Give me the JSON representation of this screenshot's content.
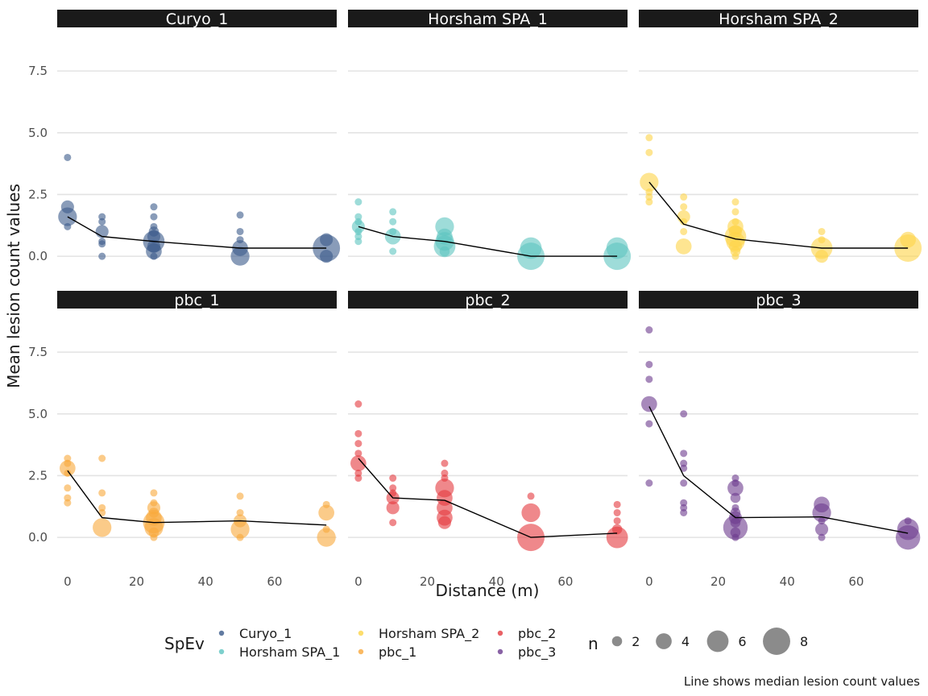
{
  "chart_data": {
    "type": "scatter",
    "layout": "faceted 2x3 scatter with median line",
    "xlabel": "Distance (m)",
    "ylabel": "Mean lesion count values",
    "caption": "Line shows median lesion count values",
    "x_ticks": [
      0,
      20,
      40,
      60
    ],
    "y_ticks": [
      0.0,
      2.5,
      5.0,
      7.5
    ],
    "y_tick_labels": [
      "0.0",
      "2.5",
      "5.0",
      "7.5"
    ],
    "xlim": [
      -3,
      78
    ],
    "ylim": [
      -1.3,
      9.2
    ],
    "grid": "horizontal major gridlines",
    "legend_position": "bottom",
    "legend": {
      "color_title": "SpEv",
      "size_title": "n",
      "colors": [
        {
          "name": "Curyo_1",
          "color": "#3B5A8A"
        },
        {
          "name": "Horsham SPA_1",
          "color": "#5EC4C0"
        },
        {
          "name": "Horsham SPA_2",
          "color": "#FDD447"
        },
        {
          "name": "pbc_1",
          "color": "#F9A83B"
        },
        {
          "name": "pbc_2",
          "color": "#E4393E"
        },
        {
          "name": "pbc_3",
          "color": "#6C3B8E"
        }
      ],
      "sizes": [
        {
          "label": "2",
          "n": 2
        },
        {
          "label": "4",
          "n": 4
        },
        {
          "label": "6",
          "n": 6
        },
        {
          "label": "8",
          "n": 8
        }
      ]
    },
    "panels": [
      {
        "title": "Curyo_1",
        "color": "#3B5A8A",
        "points": [
          [
            0,
            4.0,
            1
          ],
          [
            0,
            2.0,
            3
          ],
          [
            0,
            1.6,
            5
          ],
          [
            0,
            1.2,
            1
          ],
          [
            10,
            1.6,
            1
          ],
          [
            10,
            1.4,
            1
          ],
          [
            10,
            1.0,
            3
          ],
          [
            10,
            0.6,
            1
          ],
          [
            10,
            0.5,
            1
          ],
          [
            10,
            0.0,
            1
          ],
          [
            25,
            2.0,
            1
          ],
          [
            25,
            1.6,
            1
          ],
          [
            25,
            1.2,
            1
          ],
          [
            25,
            1.0,
            2
          ],
          [
            25,
            0.8,
            3
          ],
          [
            25,
            0.6,
            6
          ],
          [
            25,
            0.4,
            3
          ],
          [
            25,
            0.2,
            4
          ],
          [
            25,
            0.0,
            1
          ],
          [
            50,
            1.67,
            1
          ],
          [
            50,
            1.0,
            1
          ],
          [
            50,
            0.67,
            1
          ],
          [
            50,
            0.33,
            4
          ],
          [
            50,
            0.0,
            5
          ],
          [
            75,
            0.67,
            3
          ],
          [
            75,
            0.33,
            8
          ],
          [
            75,
            0.0,
            3
          ]
        ],
        "median": [
          [
            0,
            1.6
          ],
          [
            10,
            0.8
          ],
          [
            25,
            0.6
          ],
          [
            50,
            0.33
          ],
          [
            75,
            0.33
          ]
        ]
      },
      {
        "title": "Horsham SPA_1",
        "color": "#5EC4C0",
        "points": [
          [
            0,
            2.2,
            1
          ],
          [
            0,
            1.6,
            1
          ],
          [
            0,
            1.4,
            1
          ],
          [
            0,
            1.2,
            3
          ],
          [
            0,
            1.0,
            1
          ],
          [
            0,
            0.8,
            1
          ],
          [
            0,
            0.6,
            1
          ],
          [
            10,
            1.8,
            1
          ],
          [
            10,
            1.4,
            1
          ],
          [
            10,
            1.0,
            1
          ],
          [
            10,
            0.8,
            4
          ],
          [
            10,
            0.2,
            1
          ],
          [
            25,
            1.2,
            5
          ],
          [
            25,
            0.8,
            4
          ],
          [
            25,
            0.6,
            5
          ],
          [
            25,
            0.4,
            6
          ],
          [
            25,
            0.2,
            2
          ],
          [
            50,
            0.33,
            6
          ],
          [
            50,
            0.0,
            8
          ],
          [
            75,
            0.33,
            6
          ],
          [
            75,
            0.0,
            8
          ]
        ],
        "median": [
          [
            0,
            1.2
          ],
          [
            10,
            0.8
          ],
          [
            25,
            0.6
          ],
          [
            50,
            0.0
          ],
          [
            75,
            0.0
          ]
        ]
      },
      {
        "title": "Horsham SPA_2",
        "color": "#FDD447",
        "points": [
          [
            0,
            4.8,
            1
          ],
          [
            0,
            4.2,
            1
          ],
          [
            0,
            3.0,
            5
          ],
          [
            0,
            2.6,
            1
          ],
          [
            0,
            2.4,
            1
          ],
          [
            0,
            2.2,
            1
          ],
          [
            10,
            2.4,
            1
          ],
          [
            10,
            2.0,
            1
          ],
          [
            10,
            1.6,
            3
          ],
          [
            10,
            1.4,
            1
          ],
          [
            10,
            1.0,
            1
          ],
          [
            10,
            0.4,
            4
          ],
          [
            25,
            2.2,
            1
          ],
          [
            25,
            1.8,
            1
          ],
          [
            25,
            1.4,
            1
          ],
          [
            25,
            1.2,
            4
          ],
          [
            25,
            1.0,
            3
          ],
          [
            25,
            0.8,
            6
          ],
          [
            25,
            0.6,
            5
          ],
          [
            25,
            0.4,
            3
          ],
          [
            25,
            0.2,
            2
          ],
          [
            25,
            0.0,
            1
          ],
          [
            50,
            1.0,
            1
          ],
          [
            50,
            0.67,
            1
          ],
          [
            50,
            0.33,
            6
          ],
          [
            50,
            0.0,
            3
          ],
          [
            75,
            0.67,
            4
          ],
          [
            75,
            0.33,
            8
          ]
        ],
        "median": [
          [
            0,
            3.0
          ],
          [
            10,
            1.3
          ],
          [
            25,
            0.7
          ],
          [
            50,
            0.33
          ],
          [
            75,
            0.33
          ]
        ]
      },
      {
        "title": "pbc_1",
        "color": "#F9A83B",
        "points": [
          [
            0,
            3.2,
            1
          ],
          [
            0,
            3.0,
            1
          ],
          [
            0,
            2.8,
            4
          ],
          [
            0,
            2.6,
            1
          ],
          [
            0,
            2.0,
            1
          ],
          [
            0,
            1.6,
            1
          ],
          [
            0,
            1.4,
            1
          ],
          [
            10,
            3.2,
            1
          ],
          [
            10,
            1.8,
            1
          ],
          [
            10,
            1.2,
            1
          ],
          [
            10,
            1.0,
            1
          ],
          [
            10,
            0.4,
            5
          ],
          [
            25,
            1.8,
            1
          ],
          [
            25,
            1.4,
            1
          ],
          [
            25,
            1.2,
            3
          ],
          [
            25,
            1.0,
            2
          ],
          [
            25,
            0.8,
            4
          ],
          [
            25,
            0.6,
            6
          ],
          [
            25,
            0.4,
            5
          ],
          [
            25,
            0.2,
            2
          ],
          [
            25,
            0.0,
            1
          ],
          [
            50,
            1.67,
            1
          ],
          [
            50,
            1.0,
            1
          ],
          [
            50,
            0.67,
            3
          ],
          [
            50,
            0.33,
            5
          ],
          [
            50,
            0.0,
            1
          ],
          [
            75,
            1.33,
            1
          ],
          [
            75,
            1.0,
            4
          ],
          [
            75,
            0.33,
            1
          ],
          [
            75,
            0.0,
            5
          ]
        ],
        "median": [
          [
            0,
            2.7
          ],
          [
            10,
            0.8
          ],
          [
            25,
            0.6
          ],
          [
            50,
            0.67
          ],
          [
            75,
            0.5
          ]
        ]
      },
      {
        "title": "pbc_2",
        "color": "#E4393E",
        "points": [
          [
            0,
            5.4,
            1
          ],
          [
            0,
            4.2,
            1
          ],
          [
            0,
            3.8,
            1
          ],
          [
            0,
            3.4,
            1
          ],
          [
            0,
            3.0,
            4
          ],
          [
            0,
            2.6,
            1
          ],
          [
            0,
            2.4,
            1
          ],
          [
            10,
            2.4,
            1
          ],
          [
            10,
            2.0,
            1
          ],
          [
            10,
            1.8,
            1
          ],
          [
            10,
            1.6,
            3
          ],
          [
            10,
            1.2,
            3
          ],
          [
            10,
            0.6,
            1
          ],
          [
            25,
            3.0,
            1
          ],
          [
            25,
            2.6,
            1
          ],
          [
            25,
            2.4,
            1
          ],
          [
            25,
            2.0,
            5
          ],
          [
            25,
            1.6,
            4
          ],
          [
            25,
            1.2,
            4
          ],
          [
            25,
            0.8,
            4
          ],
          [
            25,
            0.6,
            3
          ],
          [
            50,
            1.67,
            1
          ],
          [
            50,
            1.0,
            5
          ],
          [
            50,
            0.0,
            8
          ],
          [
            75,
            1.33,
            1
          ],
          [
            75,
            1.0,
            1
          ],
          [
            75,
            0.67,
            1
          ],
          [
            75,
            0.33,
            2
          ],
          [
            75,
            0.0,
            6
          ]
        ],
        "median": [
          [
            0,
            3.2
          ],
          [
            10,
            1.6
          ],
          [
            25,
            1.5
          ],
          [
            50,
            0.0
          ],
          [
            75,
            0.17
          ]
        ]
      },
      {
        "title": "pbc_3",
        "color": "#6C3B8E",
        "points": [
          [
            0,
            8.4,
            1
          ],
          [
            0,
            7.0,
            1
          ],
          [
            0,
            6.4,
            1
          ],
          [
            0,
            5.4,
            4
          ],
          [
            0,
            4.6,
            1
          ],
          [
            0,
            2.2,
            1
          ],
          [
            10,
            5.0,
            1
          ],
          [
            10,
            3.4,
            1
          ],
          [
            10,
            3.0,
            1
          ],
          [
            10,
            2.8,
            1
          ],
          [
            10,
            2.2,
            1
          ],
          [
            10,
            1.4,
            1
          ],
          [
            10,
            1.2,
            1
          ],
          [
            10,
            1.0,
            1
          ],
          [
            25,
            2.4,
            1
          ],
          [
            25,
            2.2,
            1
          ],
          [
            25,
            2.0,
            4
          ],
          [
            25,
            1.6,
            2
          ],
          [
            25,
            1.2,
            1
          ],
          [
            25,
            1.0,
            2
          ],
          [
            25,
            0.8,
            3
          ],
          [
            25,
            0.6,
            2
          ],
          [
            25,
            0.4,
            7
          ],
          [
            25,
            0.2,
            2
          ],
          [
            25,
            0.0,
            1
          ],
          [
            50,
            1.33,
            4
          ],
          [
            50,
            1.0,
            5
          ],
          [
            50,
            0.67,
            1
          ],
          [
            50,
            0.33,
            3
          ],
          [
            50,
            0.0,
            1
          ],
          [
            75,
            0.67,
            1
          ],
          [
            75,
            0.33,
            6
          ],
          [
            75,
            0.0,
            7
          ]
        ],
        "median": [
          [
            0,
            5.3
          ],
          [
            10,
            2.5
          ],
          [
            25,
            0.8
          ],
          [
            50,
            0.83
          ],
          [
            75,
            0.17
          ]
        ]
      }
    ]
  }
}
